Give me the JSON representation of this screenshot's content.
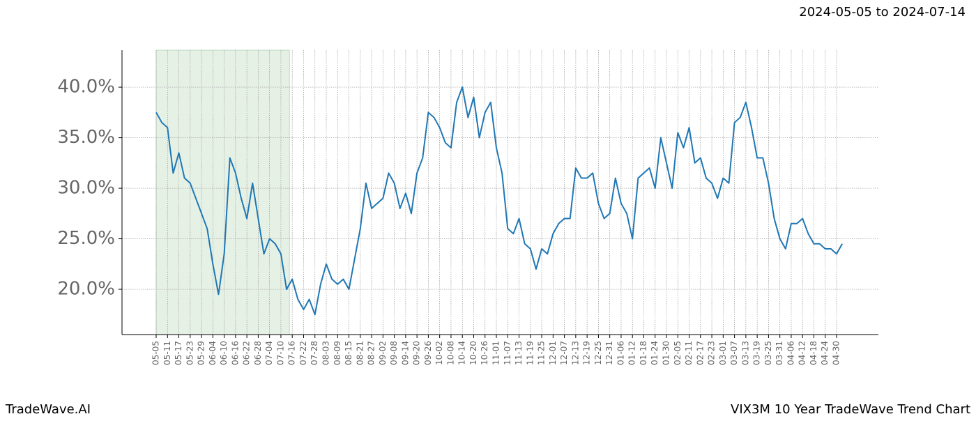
{
  "chart_data": {
    "type": "line",
    "title": "2024-05-05 to 2024-07-14",
    "footer_left": "TradeWave.AI",
    "footer_right": "VIX3M 10 Year TradeWave Trend Chart",
    "categories": [
      "05-05",
      null,
      "05-11",
      null,
      "05-17",
      null,
      "05-23",
      null,
      "05-29",
      null,
      "06-04",
      null,
      "06-10",
      null,
      "06-16",
      null,
      "06-22",
      null,
      "06-28",
      null,
      "07-04",
      null,
      "07-10",
      null,
      "07-16",
      null,
      "07-22",
      null,
      "07-28",
      null,
      "08-03",
      null,
      "08-09",
      null,
      "08-15",
      null,
      "08-21",
      null,
      "08-27",
      null,
      "09-02",
      null,
      "09-08",
      null,
      "09-14",
      null,
      "09-20",
      null,
      "09-26",
      null,
      "10-02",
      null,
      "10-08",
      null,
      "10-14",
      null,
      "10-20",
      null,
      "10-26",
      null,
      "11-01",
      null,
      "11-07",
      null,
      "11-13",
      null,
      "11-19",
      null,
      "11-25",
      null,
      "12-01",
      null,
      "12-07",
      null,
      "12-13",
      null,
      "12-19",
      null,
      "12-25",
      null,
      "12-31",
      null,
      "01-06",
      null,
      "01-12",
      null,
      "01-18",
      null,
      "01-24",
      null,
      "01-30",
      null,
      "02-05",
      null,
      "02-11",
      null,
      "02-17",
      null,
      "02-23",
      null,
      "03-01",
      null,
      "03-07",
      null,
      "03-13",
      null,
      "03-19",
      null,
      "03-25",
      null,
      "03-31",
      null,
      "04-06",
      null,
      "04-12",
      null,
      "04-18",
      null,
      "04-24",
      null,
      "04-30",
      null
    ],
    "series": [
      {
        "name": "VIX3M",
        "color": "#1f77b4",
        "values": [
          37.5,
          36.5,
          36,
          31.5,
          33.5,
          31,
          30.5,
          29,
          27.5,
          26,
          22.5,
          19.5,
          23.5,
          33,
          31.5,
          29,
          27,
          30.5,
          27,
          23.5,
          25,
          24.5,
          23.5,
          20,
          21,
          19,
          18,
          19,
          17.5,
          20.5,
          22.5,
          21,
          20.5,
          21,
          20,
          23,
          26,
          30.5,
          28,
          28.5,
          29,
          31.5,
          30.5,
          28,
          29.5,
          27.5,
          31.5,
          33,
          37.5,
          37,
          36,
          34.5,
          34,
          38.5,
          40,
          37,
          39,
          35,
          37.5,
          38.5,
          34,
          31.5,
          26,
          25.5,
          27,
          24.5,
          24,
          22,
          24,
          23.5,
          25.5,
          26.5,
          27,
          27,
          32,
          31,
          31,
          31.5,
          28.5,
          27,
          27.5,
          31,
          28.5,
          27.5,
          25,
          31,
          31.5,
          32,
          30,
          35,
          32.5,
          30,
          35.5,
          34,
          36,
          32.5,
          33,
          31,
          30.5,
          29,
          31,
          30.5,
          36.5,
          37,
          38.5,
          36,
          33,
          33,
          30.5,
          27,
          25,
          24,
          26.5,
          26.5,
          27,
          25.5,
          24.5,
          24.5,
          24,
          24,
          23.5,
          24.5
        ]
      }
    ],
    "ylim": [
      15.52,
      43.66
    ],
    "yticks": [
      {
        "value": 20,
        "label": "20.0%"
      },
      {
        "value": 25,
        "label": "25.0%"
      },
      {
        "value": 30,
        "label": "30.0%"
      },
      {
        "value": 35,
        "label": "35.0%"
      },
      {
        "value": 40,
        "label": "40.0%"
      }
    ],
    "highlight_range": [
      0,
      23.5
    ],
    "highlight_color": "#e6f1e6",
    "grid": true
  }
}
